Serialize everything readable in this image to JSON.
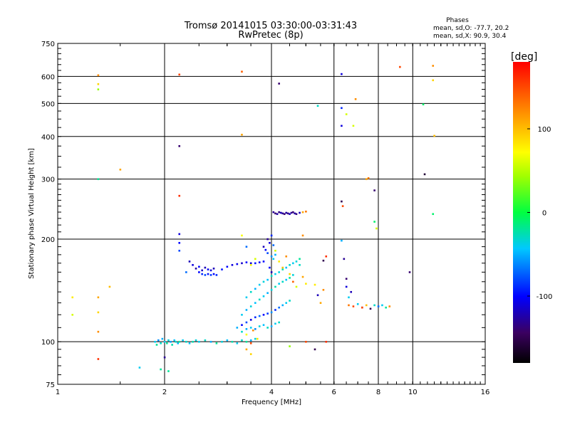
{
  "chart_data": {
    "type": "scatter",
    "title": "Tromsø 20141015 03:30:00-03:31:43",
    "subtitle": "RwPretec (8p)",
    "xlabel": "Frequency [MHz]",
    "ylabel": "Stationary phase Virtual Height [km]",
    "x_scale": "log",
    "y_scale": "log",
    "xlim": [
      1,
      16
    ],
    "ylim": [
      75,
      750
    ],
    "x_ticks": [
      1,
      2,
      4,
      6,
      8,
      10,
      16
    ],
    "x_tick_labels": [
      "1",
      "2",
      "4",
      "6",
      "8",
      "10",
      "16"
    ],
    "y_ticks": [
      75,
      100,
      200,
      300,
      400,
      500,
      600,
      750
    ],
    "y_tick_labels": [
      "75",
      "100",
      "200",
      "300",
      "400",
      "500",
      "600",
      "750"
    ],
    "grid": true,
    "colorbar": {
      "label": "[deg]",
      "range": [
        -180,
        180
      ],
      "ticks": [
        -100,
        0,
        100
      ],
      "tick_labels": [
        "-100",
        "0",
        "100"
      ],
      "colormap": "rainbow"
    },
    "stats": {
      "heading": "Phases",
      "line1": "mean, sd,O: -77.7, 20.2",
      "line2": "mean, sd,X:  90.9, 30.4"
    },
    "series": [
      {
        "points": [
          [
            1.1,
            135,
            80
          ],
          [
            1.1,
            120,
            60
          ],
          [
            1.3,
            605,
            120
          ],
          [
            1.3,
            570,
            90
          ],
          [
            1.3,
            550,
            40
          ],
          [
            1.3,
            300,
            -20
          ],
          [
            1.3,
            135,
            110
          ],
          [
            1.3,
            122,
            90
          ],
          [
            1.3,
            107,
            120
          ],
          [
            1.3,
            89,
            160
          ],
          [
            1.4,
            145,
            100
          ],
          [
            1.5,
            320,
            110
          ],
          [
            1.7,
            84,
            -40
          ],
          [
            1.88,
            100,
            -40
          ],
          [
            1.9,
            98,
            -20
          ],
          [
            1.92,
            101,
            -60
          ],
          [
            1.95,
            99,
            -30
          ],
          [
            1.97,
            102,
            -50
          ],
          [
            2.0,
            100,
            -40
          ],
          [
            2.03,
            99,
            -20
          ],
          [
            2.05,
            101,
            -35
          ],
          [
            2.08,
            100,
            -55
          ],
          [
            2.1,
            98,
            -25
          ],
          [
            2.13,
            101,
            -45
          ],
          [
            2.15,
            100,
            -30
          ],
          [
            2.18,
            99,
            -50
          ],
          [
            2.2,
            100,
            -20
          ],
          [
            2.25,
            101,
            -40
          ],
          [
            2.3,
            100,
            -30
          ],
          [
            2.35,
            99,
            -45
          ],
          [
            2.4,
            100,
            -25
          ],
          [
            2.45,
            101,
            -35
          ],
          [
            2.5,
            100,
            -40
          ],
          [
            2.6,
            101,
            -30
          ],
          [
            2.7,
            100,
            -50
          ],
          [
            2.8,
            99,
            -20
          ],
          [
            2.9,
            100,
            -35
          ],
          [
            3.0,
            101,
            -45
          ],
          [
            3.1,
            100,
            -25
          ],
          [
            3.2,
            99,
            -40
          ],
          [
            3.3,
            101,
            -30
          ],
          [
            3.4,
            100,
            -20
          ],
          [
            3.5,
            101,
            -50
          ],
          [
            3.6,
            102,
            -35
          ],
          [
            1.95,
            83,
            -20
          ],
          [
            2.0,
            90,
            -130
          ],
          [
            2.05,
            82,
            -20
          ],
          [
            2.2,
            608,
            150
          ],
          [
            2.2,
            375,
            -140
          ],
          [
            2.2,
            268,
            160
          ],
          [
            2.2,
            207,
            -110
          ],
          [
            2.2,
            195,
            -100
          ],
          [
            2.2,
            185,
            -80
          ],
          [
            2.3,
            160,
            -70
          ],
          [
            2.35,
            172,
            -120
          ],
          [
            2.4,
            168,
            -110
          ],
          [
            2.45,
            164,
            -125
          ],
          [
            2.5,
            166,
            -100
          ],
          [
            2.55,
            162,
            -115
          ],
          [
            2.6,
            165,
            -120
          ],
          [
            2.65,
            163,
            -105
          ],
          [
            2.7,
            162,
            -110
          ],
          [
            2.75,
            164,
            -120
          ],
          [
            2.5,
            160,
            -100
          ],
          [
            2.55,
            158,
            -90
          ],
          [
            2.6,
            157,
            -80
          ],
          [
            2.65,
            158,
            -95
          ],
          [
            2.7,
            157,
            -85
          ],
          [
            2.75,
            158,
            -100
          ],
          [
            2.8,
            157,
            -90
          ],
          [
            2.9,
            163,
            -95
          ],
          [
            3.0,
            166,
            -100
          ],
          [
            3.1,
            168,
            -110
          ],
          [
            3.2,
            169,
            -105
          ],
          [
            3.3,
            170,
            -115
          ],
          [
            3.4,
            171,
            -100
          ],
          [
            3.5,
            170,
            -110
          ],
          [
            3.6,
            170,
            -95
          ],
          [
            3.7,
            171,
            -105
          ],
          [
            3.8,
            172,
            -100
          ],
          [
            3.3,
            620,
            140
          ],
          [
            3.3,
            405,
            110
          ],
          [
            3.3,
            205,
            70
          ],
          [
            3.4,
            190,
            -70
          ],
          [
            3.5,
            168,
            70
          ],
          [
            3.6,
            175,
            60
          ],
          [
            3.4,
            135,
            -40
          ],
          [
            3.5,
            140,
            -30
          ],
          [
            3.6,
            143,
            -50
          ],
          [
            3.7,
            147,
            -40
          ],
          [
            3.8,
            150,
            -35
          ],
          [
            3.9,
            152,
            -45
          ],
          [
            4.0,
            156,
            -30
          ],
          [
            4.1,
            158,
            -40
          ],
          [
            4.2,
            160,
            -35
          ],
          [
            4.3,
            163,
            -25
          ],
          [
            4.4,
            165,
            -45
          ],
          [
            4.5,
            168,
            -30
          ],
          [
            4.6,
            170,
            -40
          ],
          [
            4.7,
            172,
            -35
          ],
          [
            4.8,
            175,
            -20
          ],
          [
            3.3,
            120,
            -40
          ],
          [
            3.4,
            124,
            -50
          ],
          [
            3.5,
            127,
            -35
          ],
          [
            3.6,
            130,
            -45
          ],
          [
            3.7,
            133,
            -30
          ],
          [
            3.8,
            136,
            -40
          ],
          [
            3.9,
            139,
            -50
          ],
          [
            4.0,
            142,
            -35
          ],
          [
            4.1,
            145,
            -25
          ],
          [
            4.2,
            148,
            -40
          ],
          [
            4.3,
            150,
            -30
          ],
          [
            4.4,
            152,
            -45
          ],
          [
            4.5,
            154,
            -20
          ],
          [
            4.6,
            157,
            -35
          ],
          [
            3.2,
            110,
            -50
          ],
          [
            3.3,
            112,
            -100
          ],
          [
            3.4,
            114,
            -80
          ],
          [
            3.5,
            116,
            -110
          ],
          [
            3.6,
            118,
            -90
          ],
          [
            3.7,
            119,
            -70
          ],
          [
            3.8,
            120,
            -100
          ],
          [
            3.9,
            121,
            -85
          ],
          [
            4.0,
            122,
            -60
          ],
          [
            4.1,
            124,
            -90
          ],
          [
            4.2,
            126,
            -70
          ],
          [
            4.3,
            128,
            -50
          ],
          [
            4.4,
            130,
            -40
          ],
          [
            4.5,
            132,
            -30
          ],
          [
            3.3,
            107,
            -30
          ],
          [
            3.4,
            109,
            -50
          ],
          [
            3.5,
            110,
            -40
          ],
          [
            3.6,
            109,
            -60
          ],
          [
            3.7,
            111,
            -35
          ],
          [
            3.8,
            112,
            -45
          ],
          [
            3.9,
            110,
            -30
          ],
          [
            4.0,
            111,
            -50
          ],
          [
            4.1,
            113,
            -40
          ],
          [
            4.2,
            114,
            -30
          ],
          [
            3.4,
            105,
            70
          ],
          [
            3.5,
            99,
            150
          ],
          [
            3.55,
            108,
            120
          ],
          [
            3.65,
            102,
            80
          ],
          [
            3.4,
            95,
            110
          ],
          [
            3.5,
            92,
            90
          ],
          [
            3.9,
            200,
            -130
          ],
          [
            3.95,
            195,
            -110
          ],
          [
            4.0,
            205,
            -90
          ],
          [
            4.05,
            192,
            -70
          ],
          [
            3.8,
            190,
            -120
          ],
          [
            3.85,
            186,
            -100
          ],
          [
            3.9,
            182,
            -80
          ],
          [
            4.0,
            178,
            -60
          ],
          [
            4.05,
            175,
            -40
          ],
          [
            4.1,
            180,
            -50
          ],
          [
            3.95,
            165,
            -100
          ],
          [
            4.0,
            160,
            -120
          ],
          [
            4.1,
            185,
            60
          ],
          [
            4.2,
            172,
            80
          ],
          [
            4.3,
            165,
            100
          ],
          [
            4.4,
            178,
            120
          ],
          [
            4.5,
            158,
            90
          ],
          [
            4.6,
            150,
            140
          ],
          [
            4.7,
            145,
            60
          ],
          [
            4.8,
            168,
            -30
          ],
          [
            4.9,
            155,
            110
          ],
          [
            5.0,
            148,
            80
          ],
          [
            4.05,
            240,
            -130
          ],
          [
            4.1,
            238,
            -140
          ],
          [
            4.15,
            237,
            -125
          ],
          [
            4.2,
            240,
            -135
          ],
          [
            4.25,
            239,
            -120
          ],
          [
            4.3,
            238,
            -130
          ],
          [
            4.35,
            237,
            -140
          ],
          [
            4.4,
            239,
            -125
          ],
          [
            4.45,
            238,
            -135
          ],
          [
            4.5,
            237,
            -120
          ],
          [
            4.55,
            239,
            -130
          ],
          [
            4.6,
            240,
            -140
          ],
          [
            4.65,
            238,
            -125
          ],
          [
            4.7,
            237,
            -135
          ],
          [
            4.8,
            239,
            -120
          ],
          [
            4.9,
            240,
            110
          ],
          [
            5.0,
            241,
            130
          ],
          [
            4.2,
            572,
            -140
          ],
          [
            5.4,
            492,
            -30
          ],
          [
            4.9,
            205,
            120
          ],
          [
            5.0,
            100,
            150
          ],
          [
            4.5,
            97,
            40
          ],
          [
            5.3,
            95,
            -150
          ],
          [
            5.7,
            100,
            160
          ],
          [
            5.6,
            173,
            -150
          ],
          [
            5.7,
            178,
            160
          ],
          [
            5.5,
            130,
            110
          ],
          [
            5.4,
            137,
            -120
          ],
          [
            5.3,
            147,
            80
          ],
          [
            5.6,
            142,
            120
          ],
          [
            6.3,
            610,
            -110
          ],
          [
            6.3,
            485,
            -90
          ],
          [
            6.3,
            430,
            -110
          ],
          [
            6.5,
            465,
            60
          ],
          [
            6.3,
            258,
            -150
          ],
          [
            6.35,
            250,
            150
          ],
          [
            6.3,
            198,
            -50
          ],
          [
            6.4,
            175,
            -130
          ],
          [
            6.5,
            153,
            -140
          ],
          [
            6.5,
            145,
            -110
          ],
          [
            6.6,
            135,
            -40
          ],
          [
            6.7,
            140,
            -120
          ],
          [
            6.6,
            128,
            130
          ],
          [
            6.8,
            127,
            150
          ],
          [
            7.0,
            129,
            -40
          ],
          [
            7.2,
            126,
            -130
          ],
          [
            7.4,
            128,
            100
          ],
          [
            7.6,
            125,
            -150
          ],
          [
            7.8,
            128,
            -30
          ],
          [
            8.0,
            127,
            -70
          ],
          [
            8.2,
            128,
            -40
          ],
          [
            8.4,
            126,
            -20
          ],
          [
            8.6,
            127,
            120
          ],
          [
            6.8,
            430,
            60
          ],
          [
            6.9,
            515,
            120
          ],
          [
            7.8,
            278,
            -140
          ],
          [
            7.8,
            225,
            -10
          ],
          [
            7.9,
            215,
            60
          ],
          [
            7.4,
            300,
            110
          ],
          [
            7.5,
            302,
            130
          ],
          [
            7.2,
            126,
            150
          ],
          [
            9.2,
            640,
            150
          ],
          [
            9.8,
            160,
            -140
          ],
          [
            10.7,
            497,
            -10
          ],
          [
            10.8,
            310,
            -160
          ],
          [
            11.4,
            645,
            120
          ],
          [
            11.4,
            585,
            90
          ],
          [
            11.5,
            402,
            100
          ],
          [
            11.4,
            237,
            -10
          ]
        ]
      }
    ]
  }
}
